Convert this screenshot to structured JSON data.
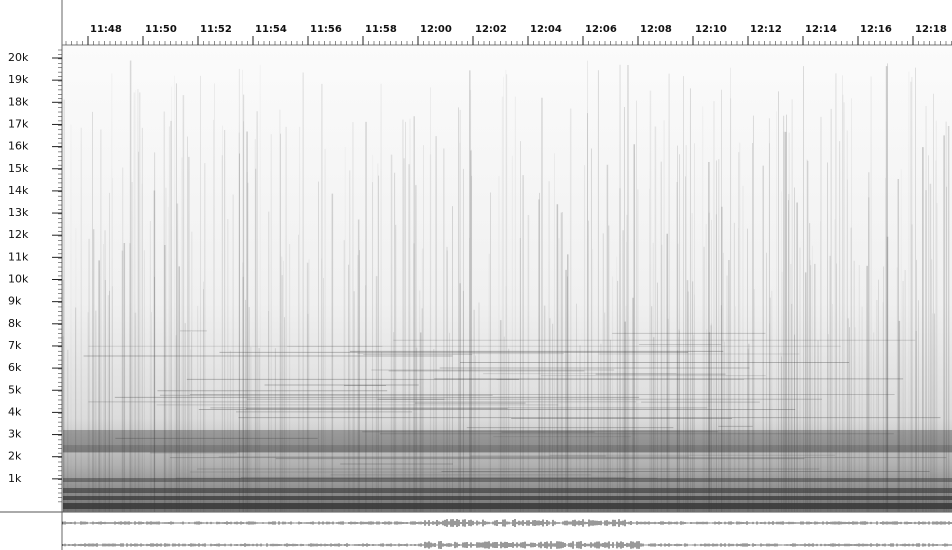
{
  "time_axis": {
    "labels": [
      "11:48",
      "11:50",
      "11:52",
      "11:54",
      "11:56",
      "11:58",
      "12:00",
      "12:02",
      "12:04",
      "12:06",
      "12:08",
      "12:10",
      "12:12",
      "12:14",
      "12:16",
      "12:18"
    ]
  },
  "frequency_axis": {
    "labels": [
      "20k",
      "19k",
      "18k",
      "17k",
      "16k",
      "15k",
      "14k",
      "13k",
      "12k",
      "11k",
      "10k",
      "9k",
      "8k",
      "7k",
      "6k",
      "5k",
      "4k",
      "3k",
      "2k",
      "1k"
    ]
  }
}
